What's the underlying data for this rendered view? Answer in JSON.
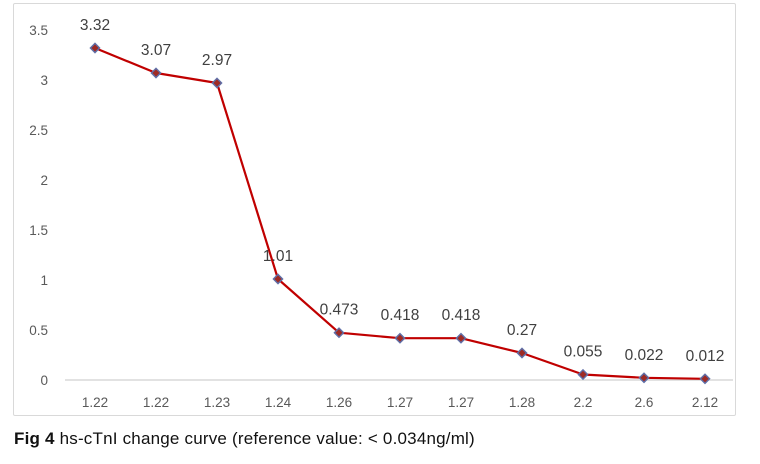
{
  "figure": {
    "caption_prefix": "Fig 4",
    "caption_text": " hs-cTnI change curve (reference value: < 0.034ng/ml)"
  },
  "chart_data": {
    "type": "line",
    "title": "",
    "xlabel": "",
    "ylabel": "",
    "categories": [
      "1.22",
      "1.22",
      "1.23",
      "1.24",
      "1.26",
      "1.27",
      "1.27",
      "1.28",
      "2.2",
      "2.6",
      "2.12"
    ],
    "series": [
      {
        "name": "hs-cTnI",
        "values": [
          3.32,
          3.07,
          2.97,
          1.01,
          0.473,
          0.418,
          0.418,
          0.27,
          0.055,
          0.022,
          0.012
        ]
      }
    ],
    "data_labels": [
      "3.32",
      "3.07",
      "2.97",
      "1.01",
      "0.473",
      "0.418",
      "0.418",
      "0.27",
      "0.055",
      "0.022",
      "0.012"
    ],
    "y_ticks": [
      "0",
      "0.5",
      "1",
      "1.5",
      "2",
      "2.5",
      "3",
      "3.5"
    ],
    "ylim": [
      0,
      3.5
    ],
    "grid": false,
    "legend_position": "none",
    "marker": "diamond",
    "colors": {
      "line": "#C00000",
      "marker_fill": "#9E2B25",
      "marker_stroke": "#5F6FA8",
      "axis_line": "#D9D9D9",
      "axis_tick_label": "#595959",
      "data_label": "#404040",
      "chart_border": "#D9D9D9"
    }
  }
}
